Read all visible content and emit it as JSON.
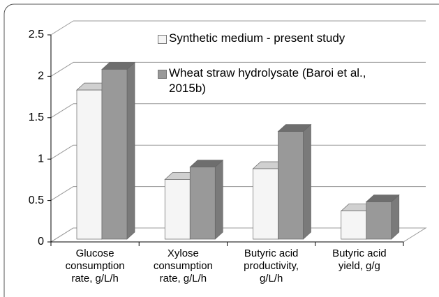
{
  "chart_data": {
    "type": "bar3d",
    "categories": [
      "Glucose consumption rate, g/L/h",
      "Xylose consumption rate, g/L/h",
      "Butyric acid productivity, g/L/h",
      "Butyric acid yield, g/g"
    ],
    "series": [
      {
        "name": "Synthetic medium - present study",
        "color": "#f5f5f5",
        "values": [
          1.8,
          0.72,
          0.85,
          0.34
        ]
      },
      {
        "name": "Wheat straw hydrolysate (Baroi et al., 2015b)",
        "color": "#999999",
        "values": [
          2.05,
          0.87,
          1.3,
          0.45
        ]
      }
    ],
    "ylim": [
      0,
      2.5
    ],
    "yticks": [
      0,
      0.5,
      1,
      1.5,
      2,
      2.5
    ],
    "grid": true
  }
}
